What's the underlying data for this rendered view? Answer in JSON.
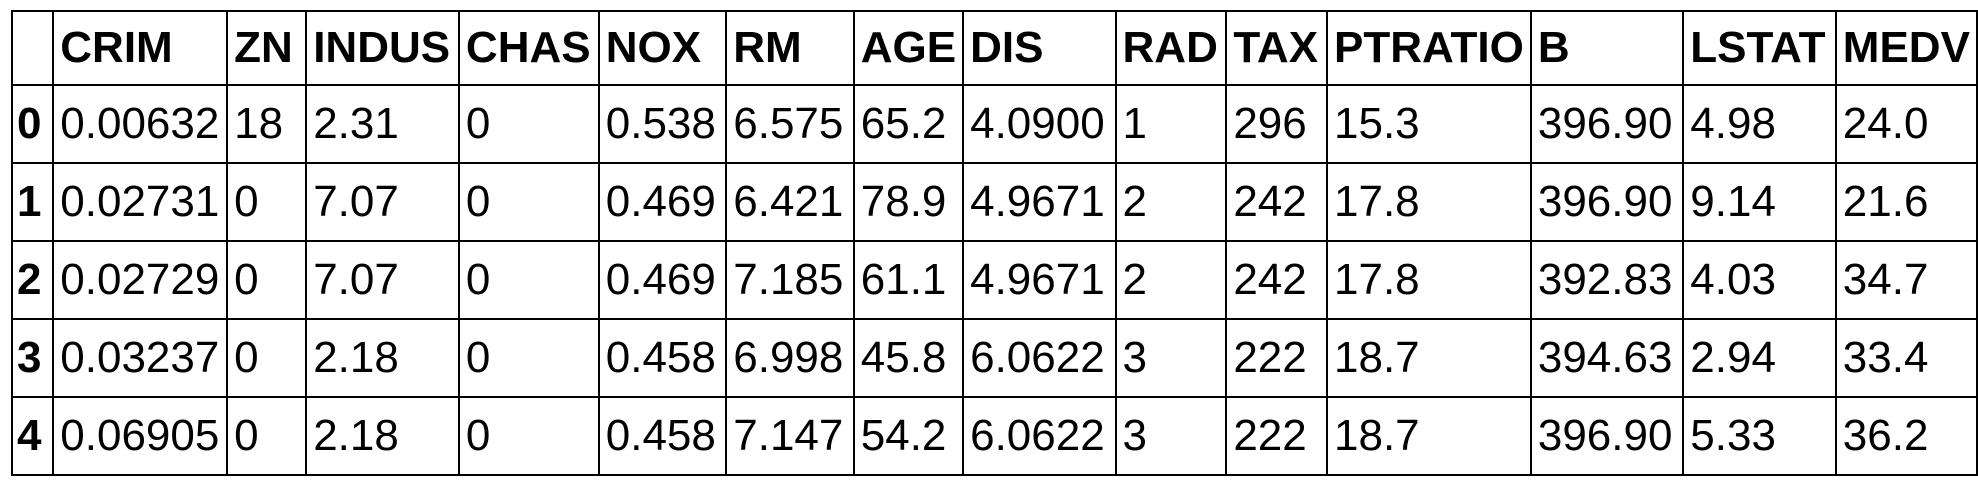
{
  "columns": [
    "",
    "CRIM",
    "ZN",
    "INDUS",
    "CHAS",
    "NOX",
    "RM",
    "AGE",
    "DIS",
    "RAD",
    "TAX",
    "PTRATIO",
    "B",
    "LSTAT",
    "MEDV"
  ],
  "rows": [
    {
      "index": "0",
      "cells": [
        "0.00632",
        "18",
        "2.31",
        "0",
        "0.538",
        "6.575",
        "65.2",
        "4.0900",
        "1",
        "296",
        "15.3",
        "396.90",
        "4.98",
        "24.0"
      ]
    },
    {
      "index": "1",
      "cells": [
        "0.02731",
        "0",
        "7.07",
        "0",
        "0.469",
        "6.421",
        "78.9",
        "4.9671",
        "2",
        "242",
        "17.8",
        "396.90",
        "9.14",
        "21.6"
      ]
    },
    {
      "index": "2",
      "cells": [
        "0.02729",
        "0",
        "7.07",
        "0",
        "0.469",
        "7.185",
        "61.1",
        "4.9671",
        "2",
        "242",
        "17.8",
        "392.83",
        "4.03",
        "34.7"
      ]
    },
    {
      "index": "3",
      "cells": [
        "0.03237",
        "0",
        "2.18",
        "0",
        "0.458",
        "6.998",
        "45.8",
        "6.0622",
        "3",
        "222",
        "18.7",
        "394.63",
        "2.94",
        "33.4"
      ]
    },
    {
      "index": "4",
      "cells": [
        "0.06905",
        "0",
        "2.18",
        "0",
        "0.458",
        "7.147",
        "54.2",
        "6.0622",
        "3",
        "222",
        "18.7",
        "396.90",
        "5.33",
        "36.2"
      ]
    }
  ]
}
